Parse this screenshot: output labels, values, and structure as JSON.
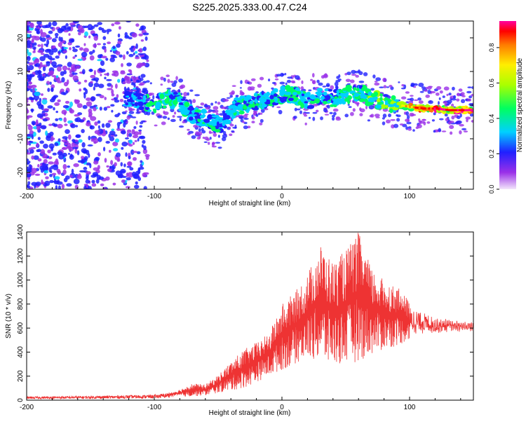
{
  "title": "S225.2025.333.00.47.C24",
  "chart_data": [
    {
      "type": "heatmap",
      "title": "S225.2025.333.00.47.C24",
      "xlabel": "Height of straight line (km)",
      "ylabel": "Frequency (Hz)",
      "xlim": [
        -200,
        150
      ],
      "ylim": [
        -25,
        25
      ],
      "xticks": [
        -200,
        -100,
        0,
        100
      ],
      "yticks": [
        -20,
        -10,
        0,
        10,
        20
      ],
      "colorbar": {
        "label": "Normalized spectral amplitude",
        "range": [
          0,
          0.95
        ],
        "ticks": [
          "0.0",
          "0.2",
          "0.4",
          "0.6",
          "0.8"
        ],
        "tick_values": [
          0.0,
          0.2,
          0.4,
          0.6,
          0.8
        ]
      },
      "ridge": {
        "x": [
          -120,
          -110,
          -100,
          -90,
          -80,
          -70,
          -60,
          -50,
          -45,
          -40,
          -35,
          -30,
          -20,
          -10,
          0,
          10,
          20,
          30,
          40,
          50,
          60,
          70,
          80,
          90,
          100,
          110,
          120,
          130,
          140,
          150
        ],
        "freq": [
          2,
          1,
          0,
          2,
          1,
          -3,
          -4,
          -6,
          -5,
          -2,
          0,
          0,
          1,
          2,
          3,
          3,
          1,
          3,
          2,
          3,
          4,
          2,
          1,
          0,
          -0.5,
          -1,
          -1,
          -1.5,
          -1.5,
          -1.5
        ],
        "amplitude": [
          0.25,
          0.3,
          0.35,
          0.4,
          0.35,
          0.3,
          0.35,
          0.3,
          0.25,
          0.3,
          0.35,
          0.4,
          0.35,
          0.4,
          0.35,
          0.4,
          0.35,
          0.3,
          0.35,
          0.4,
          0.35,
          0.45,
          0.5,
          0.55,
          0.75,
          0.85,
          0.9,
          0.9,
          0.9,
          0.9
        ]
      }
    },
    {
      "type": "line",
      "xlabel": "Height of straight line (km)",
      "ylabel": "SNR (10 * v/v)",
      "xlim": [
        -200,
        150
      ],
      "ylim": [
        0,
        1400
      ],
      "xticks": [
        -200,
        -100,
        0,
        100
      ],
      "yticks": [
        0,
        200,
        400,
        600,
        800,
        1000,
        1200,
        1400
      ],
      "series": [
        {
          "name": "SNR",
          "color": "#ee3333",
          "envelope_x": [
            -200,
            -150,
            -100,
            -90,
            -80,
            -70,
            -60,
            -50,
            -40,
            -30,
            -20,
            -10,
            0,
            10,
            20,
            30,
            40,
            50,
            60,
            70,
            80,
            90,
            100,
            110,
            120,
            130,
            140,
            150
          ],
          "envelope_max": [
            30,
            35,
            45,
            60,
            90,
            140,
            130,
            210,
            320,
            420,
            480,
            560,
            800,
            900,
            1050,
            1300,
            1150,
            1250,
            1400,
            1100,
            1000,
            950,
            820,
            780,
            700,
            680,
            660,
            640
          ],
          "envelope_min": [
            10,
            12,
            15,
            20,
            30,
            30,
            40,
            60,
            80,
            100,
            150,
            200,
            250,
            300,
            350,
            320,
            280,
            300,
            320,
            380,
            420,
            450,
            500,
            520,
            540,
            560,
            570,
            580
          ]
        }
      ]
    }
  ]
}
